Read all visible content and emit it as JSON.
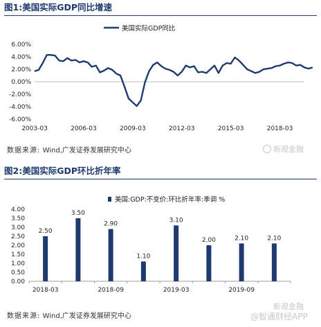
{
  "figure1": {
    "label": "图1:",
    "title": "美国实际GDP同比增速",
    "source_label": "数据来源:",
    "source_value": "Wind,广发证券发展研究中心",
    "watermark": "新观金融",
    "chart_data": {
      "type": "line",
      "title": "",
      "series_name": "美国实际GDP同比",
      "color": "#1f3a6e",
      "ylim": [
        -6.0,
        6.0
      ],
      "y_ticks": [
        "6.00%",
        "4.00%",
        "2.00%",
        "0.00%",
        "-2.00%",
        "-4.00%",
        "-6.00%"
      ],
      "x_ticks": [
        "2003-03",
        "2006-03",
        "2009-03",
        "2012-03",
        "2015-03",
        "2018-03"
      ],
      "x_start": 2003.0,
      "x_end": 2019.5,
      "grid": false,
      "points": [
        [
          2003.0,
          1.7
        ],
        [
          2003.25,
          1.9
        ],
        [
          2003.5,
          3.0
        ],
        [
          2003.75,
          4.3
        ],
        [
          2004.0,
          4.3
        ],
        [
          2004.25,
          4.2
        ],
        [
          2004.5,
          3.4
        ],
        [
          2004.75,
          3.3
        ],
        [
          2005.0,
          3.8
        ],
        [
          2005.25,
          3.4
        ],
        [
          2005.5,
          3.5
        ],
        [
          2005.75,
          3.1
        ],
        [
          2006.0,
          3.3
        ],
        [
          2006.25,
          3.1
        ],
        [
          2006.5,
          2.4
        ],
        [
          2006.75,
          2.6
        ],
        [
          2007.0,
          1.5
        ],
        [
          2007.25,
          1.8
        ],
        [
          2007.5,
          2.2
        ],
        [
          2007.75,
          1.9
        ],
        [
          2008.0,
          1.3
        ],
        [
          2008.25,
          1.0
        ],
        [
          2008.5,
          -0.8
        ],
        [
          2008.75,
          -2.7
        ],
        [
          2009.0,
          -3.3
        ],
        [
          2009.25,
          -3.9
        ],
        [
          2009.5,
          -3.0
        ],
        [
          2009.75,
          -0.1
        ],
        [
          2010.0,
          1.7
        ],
        [
          2010.25,
          2.7
        ],
        [
          2010.5,
          3.1
        ],
        [
          2010.75,
          2.5
        ],
        [
          2011.0,
          2.1
        ],
        [
          2011.25,
          1.9
        ],
        [
          2011.5,
          1.6
        ],
        [
          2011.75,
          1.0
        ],
        [
          2012.0,
          1.6
        ],
        [
          2012.25,
          2.6
        ],
        [
          2012.5,
          2.3
        ],
        [
          2012.75,
          2.5
        ],
        [
          2013.0,
          1.5
        ],
        [
          2013.25,
          1.6
        ],
        [
          2013.5,
          1.4
        ],
        [
          2013.75,
          2.0
        ],
        [
          2014.0,
          2.6
        ],
        [
          2014.25,
          1.4
        ],
        [
          2014.5,
          2.6
        ],
        [
          2014.75,
          3.0
        ],
        [
          2015.0,
          2.9
        ],
        [
          2015.25,
          3.9
        ],
        [
          2015.5,
          3.4
        ],
        [
          2015.75,
          2.7
        ],
        [
          2016.0,
          2.0
        ],
        [
          2016.25,
          1.7
        ],
        [
          2016.5,
          1.4
        ],
        [
          2016.75,
          1.6
        ],
        [
          2017.0,
          2.0
        ],
        [
          2017.25,
          2.1
        ],
        [
          2017.5,
          2.2
        ],
        [
          2017.75,
          2.5
        ],
        [
          2018.0,
          2.6
        ],
        [
          2018.25,
          2.9
        ],
        [
          2018.5,
          3.1
        ],
        [
          2018.75,
          3.0
        ],
        [
          2019.0,
          2.6
        ],
        [
          2019.25,
          2.7
        ],
        [
          2019.5,
          2.3
        ],
        [
          2019.75,
          2.1
        ],
        [
          2020.0,
          2.3
        ]
      ]
    }
  },
  "figure2": {
    "label": "图2:",
    "title": "美国实际GDP环比折年率",
    "source_label": "数据来源:",
    "source_value": "Wind,广发证券发展研究中心",
    "watermark": "新观金融",
    "watermark2": "@智通财经APP",
    "chart_data": {
      "type": "bar",
      "title": "",
      "series_name": "美国:GDP:不变价:环比折年率:季调 %",
      "color": "#1f3a6e",
      "ylim": [
        0.0,
        4.0
      ],
      "y_ticks": [
        "4.00",
        "3.50",
        "3.00",
        "2.50",
        "2.00",
        "1.50",
        "1.00",
        "0.50",
        "0.00"
      ],
      "categories": [
        "2018-03",
        "2018-06",
        "2018-09",
        "2018-12",
        "2019-03",
        "2019-06",
        "2019-09",
        "2019-12"
      ],
      "values": [
        2.5,
        3.5,
        2.9,
        1.1,
        3.1,
        2.0,
        2.1,
        2.1
      ],
      "data_labels": [
        "2.50",
        "3.50",
        "2.90",
        "1.10",
        "3.10",
        "2.00",
        "2.10",
        "2.10"
      ],
      "x_tick_labels": [
        "2018-03",
        "2018-09",
        "2019-03",
        "2019-09"
      ],
      "x_tick_positions": [
        0,
        2,
        4,
        6
      ],
      "grid": false
    }
  }
}
